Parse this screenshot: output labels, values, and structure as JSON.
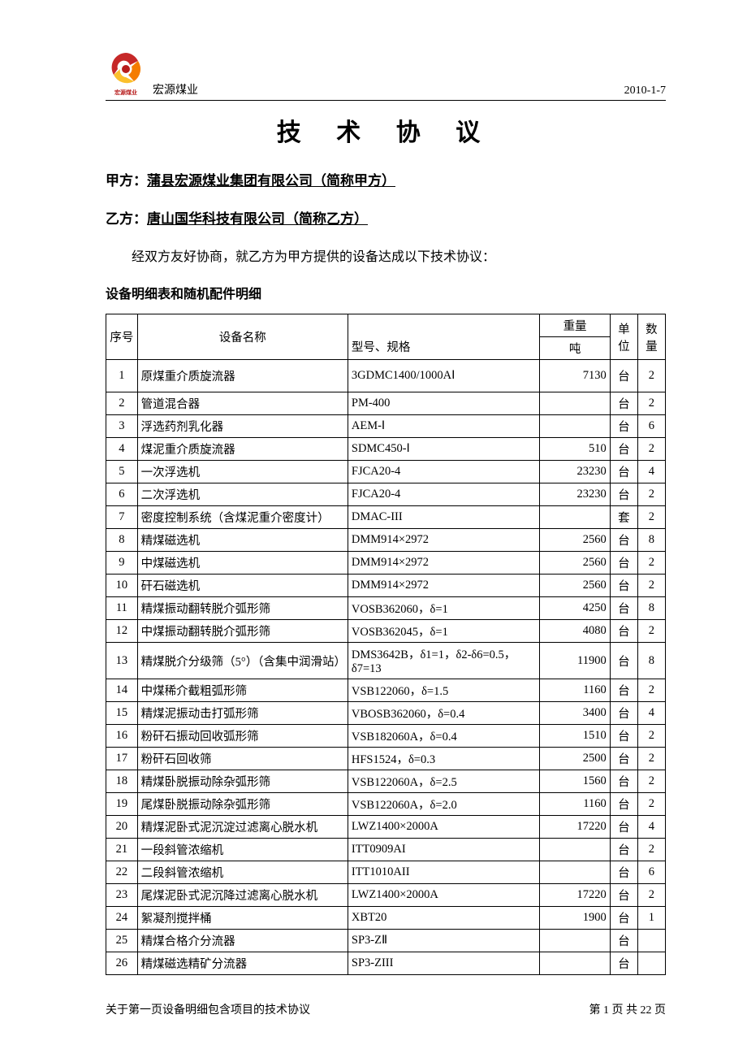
{
  "header": {
    "company_small": "宏源煤业",
    "date": "2010-1-7",
    "logo_colors": {
      "red": "#c62828",
      "orange": "#f57c00",
      "yellow": "#fbc02d",
      "center": "#b71c1c"
    },
    "logo_label": "宏源煤业"
  },
  "title": "技 术 协 议",
  "party_a_prefix": "甲方：",
  "party_a": "蒲县宏源煤业集团有限公司（简称甲方）",
  "party_b_prefix": "乙方：",
  "party_b": "唐山国华科技有限公司（简称乙方）",
  "intro": "经双方友好协商，就乙方为甲方提供的设备达成以下技术协议：",
  "section_head": "设备明细表和随机配件明细",
  "table": {
    "headers": {
      "seq": "序号",
      "name": "设备名称",
      "model": "型号、规格",
      "weight_top": "重量",
      "weight_bot": "吨",
      "unit": "单位",
      "qty": "数量"
    },
    "rows": [
      {
        "seq": "1",
        "name": "原煤重介质旋流器",
        "model": "3GDMC1400/1000AⅠ",
        "weight": "7130",
        "unit": "台",
        "qty": "2"
      },
      {
        "seq": "2",
        "name": "管道混合器",
        "model": "PM-400",
        "weight": "",
        "unit": "台",
        "qty": "2"
      },
      {
        "seq": "3",
        "name": "浮选药剂乳化器",
        "model": "AEM-Ⅰ",
        "weight": "",
        "unit": "台",
        "qty": "6"
      },
      {
        "seq": "4",
        "name": "煤泥重介质旋流器",
        "model": "SDMC450-Ⅰ",
        "weight": "510",
        "unit": "台",
        "qty": "2"
      },
      {
        "seq": "5",
        "name": "一次浮选机",
        "model": "FJCA20-4",
        "weight": "23230",
        "unit": "台",
        "qty": "4"
      },
      {
        "seq": "6",
        "name": "二次浮选机",
        "model": "FJCA20-4",
        "weight": "23230",
        "unit": "台",
        "qty": "2"
      },
      {
        "seq": "7",
        "name": "密度控制系统（含煤泥重介密度计）",
        "model": "DMAC-III",
        "weight": "",
        "unit": "套",
        "qty": "2"
      },
      {
        "seq": "8",
        "name": "精煤磁选机",
        "model": "DMM914×2972",
        "weight": "2560",
        "unit": "台",
        "qty": "8"
      },
      {
        "seq": "9",
        "name": "中煤磁选机",
        "model": "DMM914×2972",
        "weight": "2560",
        "unit": "台",
        "qty": "2"
      },
      {
        "seq": "10",
        "name": "矸石磁选机",
        "model": "DMM914×2972",
        "weight": "2560",
        "unit": "台",
        "qty": "2"
      },
      {
        "seq": "11",
        "name": "精煤振动翻转脱介弧形筛",
        "model": "VOSB362060，δ=1",
        "weight": "4250",
        "unit": "台",
        "qty": "8"
      },
      {
        "seq": "12",
        "name": "中煤振动翻转脱介弧形筛",
        "model": "VOSB362045，δ=1",
        "weight": "4080",
        "unit": "台",
        "qty": "2"
      },
      {
        "seq": "13",
        "name": "精煤脱介分级筛（5°）（含集中润滑站）",
        "model": "DMS3642B，δ1=1，δ2-δ6=0.5，δ7=13",
        "weight": "11900",
        "unit": "台",
        "qty": "8"
      },
      {
        "seq": "14",
        "name": "中煤稀介截粗弧形筛",
        "model": "VSB122060，δ=1.5",
        "weight": "1160",
        "unit": "台",
        "qty": "2"
      },
      {
        "seq": "15",
        "name": "精煤泥振动击打弧形筛",
        "model": "VBOSB362060，δ=0.4",
        "weight": "3400",
        "unit": "台",
        "qty": "4"
      },
      {
        "seq": "16",
        "name": "粉矸石振动回收弧形筛",
        "model": "VSB182060A，δ=0.4",
        "weight": "1510",
        "unit": "台",
        "qty": "2"
      },
      {
        "seq": "17",
        "name": "粉矸石回收筛",
        "model": "HFS1524，δ=0.3",
        "weight": "2500",
        "unit": "台",
        "qty": "2"
      },
      {
        "seq": "18",
        "name": "精煤卧脱振动除杂弧形筛",
        "model": "VSB122060A，δ=2.5",
        "weight": "1560",
        "unit": "台",
        "qty": "2"
      },
      {
        "seq": "19",
        "name": "尾煤卧脱振动除杂弧形筛",
        "model": "VSB122060A，δ=2.0",
        "weight": "1160",
        "unit": "台",
        "qty": "2"
      },
      {
        "seq": "20",
        "name": "精煤泥卧式泥沉淀过滤离心脱水机",
        "model": "LWZ1400×2000A",
        "weight": "17220",
        "unit": "台",
        "qty": "4"
      },
      {
        "seq": "21",
        "name": "一段斜管浓缩机",
        "model": "ITT0909AI",
        "weight": "",
        "unit": "台",
        "qty": "2"
      },
      {
        "seq": "22",
        "name": "二段斜管浓缩机",
        "model": "ITT1010AII",
        "weight": "",
        "unit": "台",
        "qty": "6"
      },
      {
        "seq": "23",
        "name": "尾煤泥卧式泥沉降过滤离心脱水机",
        "model": "LWZ1400×2000A",
        "weight": "17220",
        "unit": "台",
        "qty": "2"
      },
      {
        "seq": "24",
        "name": "絮凝剂搅拌桶",
        "model": "XBT20",
        "weight": "1900",
        "unit": "台",
        "qty": "1"
      },
      {
        "seq": "25",
        "name": "精煤合格介分流器",
        "model": "SP3-ZⅡ",
        "weight": "",
        "unit": "台",
        "qty": ""
      },
      {
        "seq": "26",
        "name": "精煤磁选精矿分流器",
        "model": "SP3-ZIII",
        "weight": "",
        "unit": "台",
        "qty": ""
      }
    ]
  },
  "footer": {
    "left": "关于第一页设备明细包含项目的技术协议",
    "right": "第 1 页   共 22 页"
  }
}
